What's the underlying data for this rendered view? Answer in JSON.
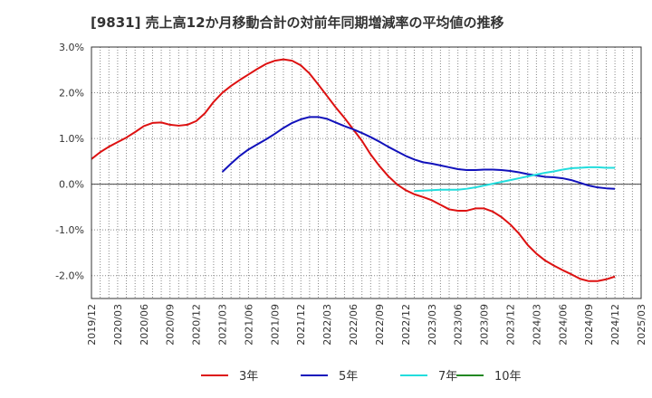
{
  "chart_data": {
    "type": "line",
    "title": "[9831]  売上高12か月移動合計の対前年同期増減率の平均値の推移",
    "xlabel": "",
    "ylabel": "",
    "x_ticks": [
      "2019/12",
      "2020/03",
      "2020/06",
      "2020/09",
      "2020/12",
      "2021/03",
      "2021/06",
      "2021/09",
      "2021/12",
      "2022/03",
      "2022/06",
      "2022/09",
      "2022/12",
      "2023/03",
      "2023/06",
      "2023/09",
      "2023/12",
      "2024/03",
      "2024/06",
      "2024/09",
      "2024/12",
      "2025/03"
    ],
    "y_ticks": [
      {
        "value": 3.0,
        "label": "3.0%"
      },
      {
        "value": 2.0,
        "label": "2.0%"
      },
      {
        "value": 1.0,
        "label": "1.0%"
      },
      {
        "value": 0.0,
        "label": "0.0%"
      },
      {
        "value": -1.0,
        "label": "-1.0%"
      },
      {
        "value": -2.0,
        "label": "-2.0%"
      }
    ],
    "ylim": [
      -2.5,
      3.0
    ],
    "grid": true,
    "legend_position": "bottom",
    "series": [
      {
        "name": "3年",
        "color": "#dd1111",
        "points": [
          [
            "2019/12",
            0.55
          ],
          [
            "2020/01",
            0.7
          ],
          [
            "2020/02",
            0.82
          ],
          [
            "2020/03",
            0.92
          ],
          [
            "2020/04",
            1.02
          ],
          [
            "2020/05",
            1.14
          ],
          [
            "2020/06",
            1.27
          ],
          [
            "2020/07",
            1.34
          ],
          [
            "2020/08",
            1.35
          ],
          [
            "2020/09",
            1.3
          ],
          [
            "2020/10",
            1.28
          ],
          [
            "2020/11",
            1.3
          ],
          [
            "2020/12",
            1.38
          ],
          [
            "2021/01",
            1.55
          ],
          [
            "2021/02",
            1.8
          ],
          [
            "2021/03",
            2.0
          ],
          [
            "2021/04",
            2.15
          ],
          [
            "2021/05",
            2.28
          ],
          [
            "2021/06",
            2.4
          ],
          [
            "2021/07",
            2.52
          ],
          [
            "2021/08",
            2.63
          ],
          [
            "2021/09",
            2.7
          ],
          [
            "2021/10",
            2.73
          ],
          [
            "2021/11",
            2.7
          ],
          [
            "2021/12",
            2.6
          ],
          [
            "2022/01",
            2.42
          ],
          [
            "2022/02",
            2.18
          ],
          [
            "2022/03",
            1.93
          ],
          [
            "2022/04",
            1.68
          ],
          [
            "2022/05",
            1.45
          ],
          [
            "2022/06",
            1.2
          ],
          [
            "2022/07",
            0.95
          ],
          [
            "2022/08",
            0.65
          ],
          [
            "2022/09",
            0.4
          ],
          [
            "2022/10",
            0.18
          ],
          [
            "2022/11",
            0.0
          ],
          [
            "2022/12",
            -0.13
          ],
          [
            "2023/01",
            -0.22
          ],
          [
            "2023/02",
            -0.28
          ],
          [
            "2023/03",
            -0.35
          ],
          [
            "2023/04",
            -0.45
          ],
          [
            "2023/05",
            -0.55
          ],
          [
            "2023/06",
            -0.58
          ],
          [
            "2023/07",
            -0.58
          ],
          [
            "2023/08",
            -0.53
          ],
          [
            "2023/09",
            -0.53
          ],
          [
            "2023/10",
            -0.6
          ],
          [
            "2023/11",
            -0.72
          ],
          [
            "2023/12",
            -0.88
          ],
          [
            "2024/01",
            -1.08
          ],
          [
            "2024/02",
            -1.33
          ],
          [
            "2024/03",
            -1.52
          ],
          [
            "2024/04",
            -1.67
          ],
          [
            "2024/05",
            -1.78
          ],
          [
            "2024/06",
            -1.88
          ],
          [
            "2024/07",
            -1.97
          ],
          [
            "2024/08",
            -2.07
          ],
          [
            "2024/09",
            -2.12
          ],
          [
            "2024/10",
            -2.12
          ],
          [
            "2024/11",
            -2.08
          ],
          [
            "2024/12",
            -2.02
          ]
        ]
      },
      {
        "name": "5年",
        "color": "#1111bb",
        "points": [
          [
            "2021/03",
            0.27
          ],
          [
            "2021/04",
            0.45
          ],
          [
            "2021/05",
            0.62
          ],
          [
            "2021/06",
            0.76
          ],
          [
            "2021/07",
            0.87
          ],
          [
            "2021/08",
            0.98
          ],
          [
            "2021/09",
            1.1
          ],
          [
            "2021/10",
            1.23
          ],
          [
            "2021/11",
            1.34
          ],
          [
            "2021/12",
            1.42
          ],
          [
            "2022/01",
            1.47
          ],
          [
            "2022/02",
            1.47
          ],
          [
            "2022/03",
            1.43
          ],
          [
            "2022/04",
            1.35
          ],
          [
            "2022/05",
            1.27
          ],
          [
            "2022/06",
            1.2
          ],
          [
            "2022/07",
            1.12
          ],
          [
            "2022/08",
            1.03
          ],
          [
            "2022/09",
            0.93
          ],
          [
            "2022/10",
            0.82
          ],
          [
            "2022/11",
            0.72
          ],
          [
            "2022/12",
            0.62
          ],
          [
            "2023/01",
            0.54
          ],
          [
            "2023/02",
            0.48
          ],
          [
            "2023/03",
            0.45
          ],
          [
            "2023/04",
            0.41
          ],
          [
            "2023/05",
            0.37
          ],
          [
            "2023/06",
            0.33
          ],
          [
            "2023/07",
            0.31
          ],
          [
            "2023/08",
            0.31
          ],
          [
            "2023/09",
            0.32
          ],
          [
            "2023/10",
            0.32
          ],
          [
            "2023/11",
            0.31
          ],
          [
            "2023/12",
            0.29
          ],
          [
            "2024/01",
            0.26
          ],
          [
            "2024/02",
            0.22
          ],
          [
            "2024/03",
            0.19
          ],
          [
            "2024/04",
            0.16
          ],
          [
            "2024/05",
            0.15
          ],
          [
            "2024/06",
            0.13
          ],
          [
            "2024/07",
            0.09
          ],
          [
            "2024/08",
            0.03
          ],
          [
            "2024/09",
            -0.03
          ],
          [
            "2024/10",
            -0.07
          ],
          [
            "2024/11",
            -0.09
          ],
          [
            "2024/12",
            -0.1
          ]
        ]
      },
      {
        "name": "7年",
        "color": "#22dddd",
        "points": [
          [
            "2023/01",
            -0.15
          ],
          [
            "2023/02",
            -0.14
          ],
          [
            "2023/03",
            -0.13
          ],
          [
            "2023/04",
            -0.12
          ],
          [
            "2023/05",
            -0.12
          ],
          [
            "2023/06",
            -0.12
          ],
          [
            "2023/07",
            -0.1
          ],
          [
            "2023/08",
            -0.07
          ],
          [
            "2023/09",
            -0.03
          ],
          [
            "2023/10",
            0.01
          ],
          [
            "2023/11",
            0.05
          ],
          [
            "2023/12",
            0.09
          ],
          [
            "2024/01",
            0.13
          ],
          [
            "2024/02",
            0.17
          ],
          [
            "2024/03",
            0.21
          ],
          [
            "2024/04",
            0.25
          ],
          [
            "2024/05",
            0.28
          ],
          [
            "2024/06",
            0.32
          ],
          [
            "2024/07",
            0.35
          ],
          [
            "2024/08",
            0.36
          ],
          [
            "2024/09",
            0.37
          ],
          [
            "2024/10",
            0.37
          ],
          [
            "2024/11",
            0.36
          ],
          [
            "2024/12",
            0.36
          ]
        ]
      },
      {
        "name": "10年",
        "color": "#228822",
        "points": []
      }
    ]
  }
}
